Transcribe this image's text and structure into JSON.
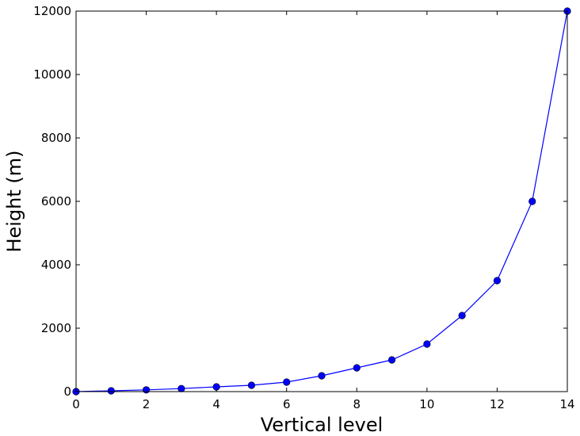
{
  "chart_data": {
    "type": "line",
    "title": "",
    "xlabel": "Vertical level",
    "ylabel": "Height (m)",
    "xlim": [
      0,
      14
    ],
    "ylim": [
      0,
      12000
    ],
    "xticks": [
      0,
      2,
      4,
      6,
      8,
      10,
      12,
      14
    ],
    "yticks": [
      0,
      2000,
      4000,
      6000,
      8000,
      10000,
      12000
    ],
    "grid": false,
    "series": [
      {
        "color": "#0000ff",
        "marker": "circle",
        "x": [
          0,
          1,
          2,
          3,
          4,
          5,
          6,
          7,
          8,
          9,
          10,
          11,
          12,
          13,
          14
        ],
        "y": [
          0,
          25,
          55,
          95,
          150,
          200,
          300,
          500,
          750,
          1000,
          1500,
          2400,
          3500,
          6000,
          12000
        ]
      }
    ]
  }
}
